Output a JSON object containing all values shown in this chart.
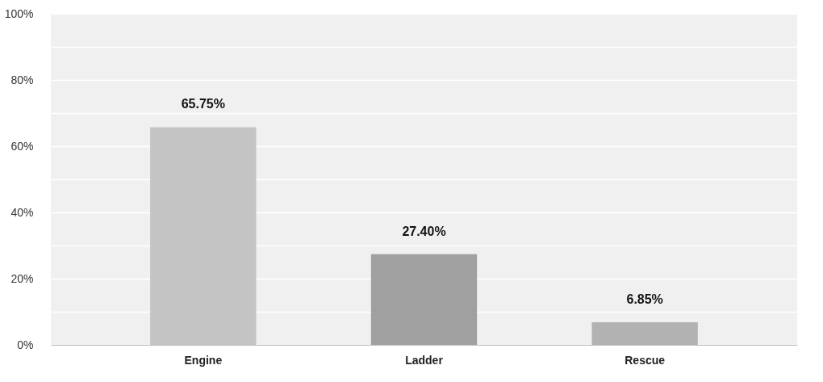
{
  "chart_data": {
    "type": "bar",
    "categories": [
      "Engine",
      "Ladder",
      "Rescue"
    ],
    "values": [
      65.75,
      27.4,
      6.85
    ],
    "colors": [
      "#c4c4c4",
      "#a0a0a0",
      "#b2b2b2"
    ],
    "value_labels": [
      "65.75%",
      "27.40%",
      "6.85%"
    ],
    "ylim": [
      0,
      100
    ],
    "yticks": [
      {
        "value": 0,
        "label": "0%"
      },
      {
        "value": 10,
        "label": null
      },
      {
        "value": 20,
        "label": "20%"
      },
      {
        "value": 30,
        "label": null
      },
      {
        "value": 40,
        "label": "40%"
      },
      {
        "value": 50,
        "label": null
      },
      {
        "value": 60,
        "label": "60%"
      },
      {
        "value": 70,
        "label": null
      },
      {
        "value": 80,
        "label": "80%"
      },
      {
        "value": 90,
        "label": null
      },
      {
        "value": 100,
        "label": "100%"
      }
    ],
    "grid": "y"
  }
}
